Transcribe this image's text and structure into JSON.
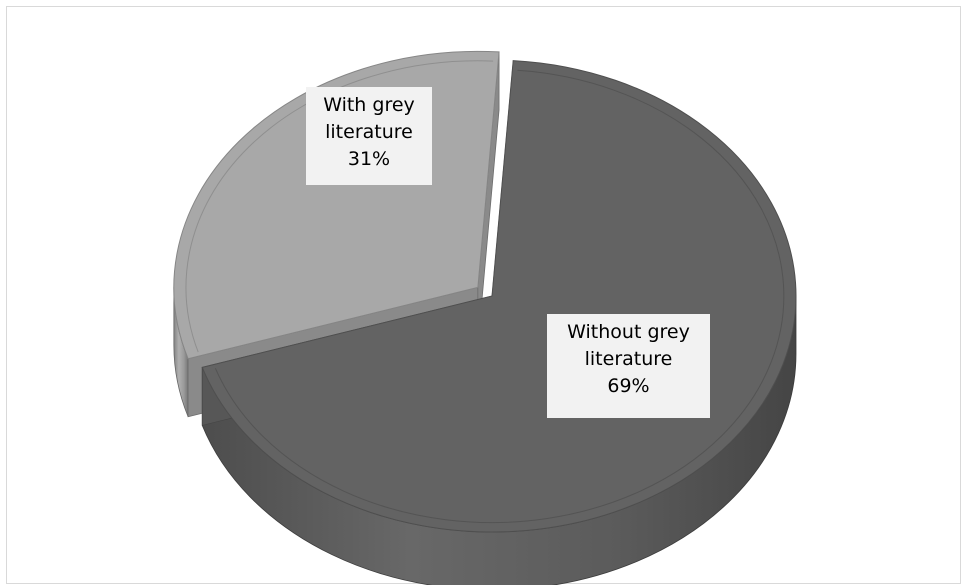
{
  "chart_data": {
    "type": "pie",
    "style": "3d-exploded",
    "title": "",
    "slices": [
      {
        "name": "Without grey literature",
        "line1": "Without grey",
        "line2": "literature",
        "value": 69,
        "value_label": "69%",
        "color": "#636363"
      },
      {
        "name": "With grey literature",
        "line1": "With grey",
        "line2": "literature",
        "value": 31,
        "value_label": "31%",
        "color": "#a8a8a8"
      }
    ],
    "legend": "none"
  }
}
